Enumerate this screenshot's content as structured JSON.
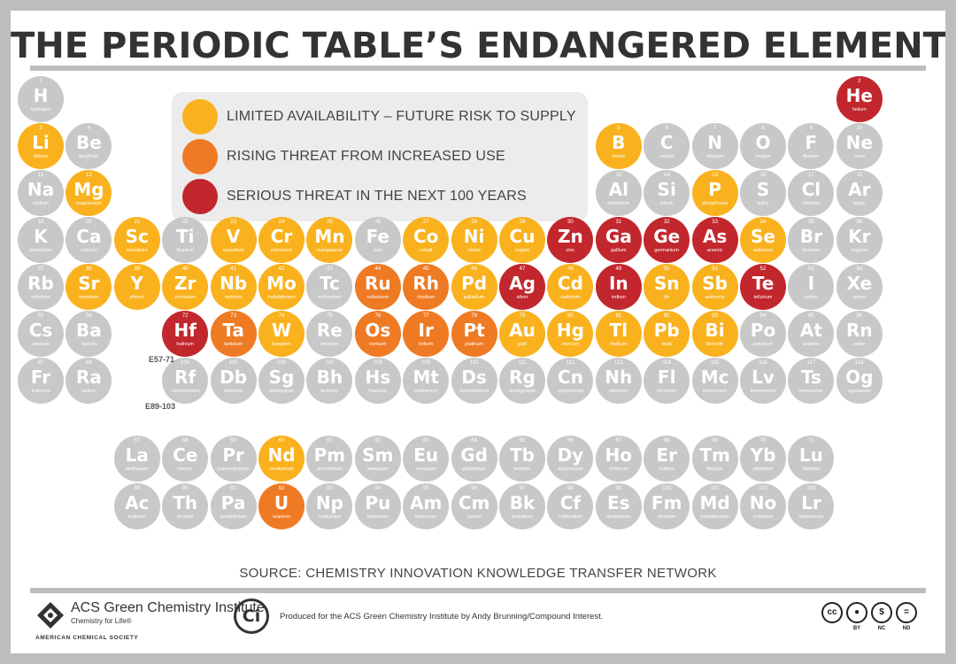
{
  "title": "THE PERIODIC TABLE’S ENDANGERED ELEMENTS",
  "legend": [
    {
      "color": "#f9b21e",
      "label": "LIMITED AVAILABILITY – FUTURE RISK TO SUPPLY"
    },
    {
      "color": "#ef7a24",
      "label": "RISING THREAT FROM INCREASED USE"
    },
    {
      "color": "#c1272d",
      "label": "SERIOUS THREAT IN THE NEXT 100 YEARS"
    }
  ],
  "colors": {
    "none": "#c8c8c8",
    "limited": "#f9b21e",
    "rising": "#ef7a24",
    "serious": "#c1272d"
  },
  "group_labels": {
    "lanthanides": "E57-71",
    "actinides": "E89-103"
  },
  "elements": [
    {
      "n": "1",
      "s": "H",
      "name": "hydrogen",
      "row": 1,
      "col": 1,
      "r": "none"
    },
    {
      "n": "2",
      "s": "He",
      "name": "helium",
      "row": 1,
      "col": 18,
      "r": "serious"
    },
    {
      "n": "3",
      "s": "Li",
      "name": "lithium",
      "row": 2,
      "col": 1,
      "r": "limited"
    },
    {
      "n": "4",
      "s": "Be",
      "name": "beryllium",
      "row": 2,
      "col": 2,
      "r": "none"
    },
    {
      "n": "5",
      "s": "B",
      "name": "boron",
      "row": 2,
      "col": 13,
      "r": "limited"
    },
    {
      "n": "6",
      "s": "C",
      "name": "carbon",
      "row": 2,
      "col": 14,
      "r": "none"
    },
    {
      "n": "7",
      "s": "N",
      "name": "nitrogen",
      "row": 2,
      "col": 15,
      "r": "none"
    },
    {
      "n": "8",
      "s": "O",
      "name": "oxygen",
      "row": 2,
      "col": 16,
      "r": "none"
    },
    {
      "n": "9",
      "s": "F",
      "name": "fluorine",
      "row": 2,
      "col": 17,
      "r": "none"
    },
    {
      "n": "10",
      "s": "Ne",
      "name": "neon",
      "row": 2,
      "col": 18,
      "r": "none"
    },
    {
      "n": "11",
      "s": "Na",
      "name": "sodium",
      "row": 3,
      "col": 1,
      "r": "none"
    },
    {
      "n": "12",
      "s": "Mg",
      "name": "magnesium",
      "row": 3,
      "col": 2,
      "r": "limited"
    },
    {
      "n": "13",
      "s": "Al",
      "name": "aluminium",
      "row": 3,
      "col": 13,
      "r": "none"
    },
    {
      "n": "14",
      "s": "Si",
      "name": "silicon",
      "row": 3,
      "col": 14,
      "r": "none"
    },
    {
      "n": "15",
      "s": "P",
      "name": "phosphorus",
      "row": 3,
      "col": 15,
      "r": "limited"
    },
    {
      "n": "16",
      "s": "S",
      "name": "sulfur",
      "row": 3,
      "col": 16,
      "r": "none"
    },
    {
      "n": "17",
      "s": "Cl",
      "name": "chlorine",
      "row": 3,
      "col": 17,
      "r": "none"
    },
    {
      "n": "18",
      "s": "Ar",
      "name": "argon",
      "row": 3,
      "col": 18,
      "r": "none"
    },
    {
      "n": "19",
      "s": "K",
      "name": "potassium",
      "row": 4,
      "col": 1,
      "r": "none"
    },
    {
      "n": "20",
      "s": "Ca",
      "name": "calcium",
      "row": 4,
      "col": 2,
      "r": "none"
    },
    {
      "n": "21",
      "s": "Sc",
      "name": "scandium",
      "row": 4,
      "col": 3,
      "r": "limited"
    },
    {
      "n": "22",
      "s": "Ti",
      "name": "titanium",
      "row": 4,
      "col": 4,
      "r": "none"
    },
    {
      "n": "23",
      "s": "V",
      "name": "vanadium",
      "row": 4,
      "col": 5,
      "r": "limited"
    },
    {
      "n": "24",
      "s": "Cr",
      "name": "chromium",
      "row": 4,
      "col": 6,
      "r": "limited"
    },
    {
      "n": "25",
      "s": "Mn",
      "name": "manganese",
      "row": 4,
      "col": 7,
      "r": "limited"
    },
    {
      "n": "26",
      "s": "Fe",
      "name": "iron",
      "row": 4,
      "col": 8,
      "r": "none"
    },
    {
      "n": "27",
      "s": "Co",
      "name": "cobalt",
      "row": 4,
      "col": 9,
      "r": "limited"
    },
    {
      "n": "28",
      "s": "Ni",
      "name": "nickel",
      "row": 4,
      "col": 10,
      "r": "limited"
    },
    {
      "n": "29",
      "s": "Cu",
      "name": "copper",
      "row": 4,
      "col": 11,
      "r": "limited"
    },
    {
      "n": "30",
      "s": "Zn",
      "name": "zinc",
      "row": 4,
      "col": 12,
      "r": "serious"
    },
    {
      "n": "31",
      "s": "Ga",
      "name": "gallium",
      "row": 4,
      "col": 13,
      "r": "serious"
    },
    {
      "n": "32",
      "s": "Ge",
      "name": "germanium",
      "row": 4,
      "col": 14,
      "r": "serious"
    },
    {
      "n": "33",
      "s": "As",
      "name": "arsenic",
      "row": 4,
      "col": 15,
      "r": "serious"
    },
    {
      "n": "34",
      "s": "Se",
      "name": "selenium",
      "row": 4,
      "col": 16,
      "r": "limited"
    },
    {
      "n": "35",
      "s": "Br",
      "name": "bromine",
      "row": 4,
      "col": 17,
      "r": "none"
    },
    {
      "n": "36",
      "s": "Kr",
      "name": "krypton",
      "row": 4,
      "col": 18,
      "r": "none"
    },
    {
      "n": "37",
      "s": "Rb",
      "name": "rubidium",
      "row": 5,
      "col": 1,
      "r": "none"
    },
    {
      "n": "38",
      "s": "Sr",
      "name": "strontium",
      "row": 5,
      "col": 2,
      "r": "limited"
    },
    {
      "n": "39",
      "s": "Y",
      "name": "yttrium",
      "row": 5,
      "col": 3,
      "r": "limited"
    },
    {
      "n": "40",
      "s": "Zr",
      "name": "zirconium",
      "row": 5,
      "col": 4,
      "r": "limited"
    },
    {
      "n": "41",
      "s": "Nb",
      "name": "niobium",
      "row": 5,
      "col": 5,
      "r": "limited"
    },
    {
      "n": "42",
      "s": "Mo",
      "name": "molybdenum",
      "row": 5,
      "col": 6,
      "r": "limited"
    },
    {
      "n": "43",
      "s": "Tc",
      "name": "technetium",
      "row": 5,
      "col": 7,
      "r": "none"
    },
    {
      "n": "44",
      "s": "Ru",
      "name": "ruthenium",
      "row": 5,
      "col": 8,
      "r": "rising"
    },
    {
      "n": "45",
      "s": "Rh",
      "name": "rhodium",
      "row": 5,
      "col": 9,
      "r": "rising"
    },
    {
      "n": "46",
      "s": "Pd",
      "name": "palladium",
      "row": 5,
      "col": 10,
      "r": "limited"
    },
    {
      "n": "47",
      "s": "Ag",
      "name": "silver",
      "row": 5,
      "col": 11,
      "r": "serious"
    },
    {
      "n": "48",
      "s": "Cd",
      "name": "cadmium",
      "row": 5,
      "col": 12,
      "r": "limited"
    },
    {
      "n": "49",
      "s": "In",
      "name": "indium",
      "row": 5,
      "col": 13,
      "r": "serious"
    },
    {
      "n": "50",
      "s": "Sn",
      "name": "tin",
      "row": 5,
      "col": 14,
      "r": "limited"
    },
    {
      "n": "51",
      "s": "Sb",
      "name": "antimony",
      "row": 5,
      "col": 15,
      "r": "limited"
    },
    {
      "n": "52",
      "s": "Te",
      "name": "tellurium",
      "row": 5,
      "col": 16,
      "r": "serious"
    },
    {
      "n": "53",
      "s": "I",
      "name": "iodine",
      "row": 5,
      "col": 17,
      "r": "none"
    },
    {
      "n": "54",
      "s": "Xe",
      "name": "xenon",
      "row": 5,
      "col": 18,
      "r": "none"
    },
    {
      "n": "55",
      "s": "Cs",
      "name": "caesium",
      "row": 6,
      "col": 1,
      "r": "none"
    },
    {
      "n": "56",
      "s": "Ba",
      "name": "barium",
      "row": 6,
      "col": 2,
      "r": "none"
    },
    {
      "n": "72",
      "s": "Hf",
      "name": "hafnium",
      "row": 6,
      "col": 4,
      "r": "serious"
    },
    {
      "n": "73",
      "s": "Ta",
      "name": "tantalum",
      "row": 6,
      "col": 5,
      "r": "rising"
    },
    {
      "n": "74",
      "s": "W",
      "name": "tungsten",
      "row": 6,
      "col": 6,
      "r": "limited"
    },
    {
      "n": "75",
      "s": "Re",
      "name": "rhenium",
      "row": 6,
      "col": 7,
      "r": "none"
    },
    {
      "n": "76",
      "s": "Os",
      "name": "osmium",
      "row": 6,
      "col": 8,
      "r": "rising"
    },
    {
      "n": "77",
      "s": "Ir",
      "name": "iridium",
      "row": 6,
      "col": 9,
      "r": "rising"
    },
    {
      "n": "78",
      "s": "Pt",
      "name": "platinum",
      "row": 6,
      "col": 10,
      "r": "rising"
    },
    {
      "n": "79",
      "s": "Au",
      "name": "gold",
      "row": 6,
      "col": 11,
      "r": "limited"
    },
    {
      "n": "80",
      "s": "Hg",
      "name": "mercury",
      "row": 6,
      "col": 12,
      "r": "limited"
    },
    {
      "n": "81",
      "s": "Tl",
      "name": "thallium",
      "row": 6,
      "col": 13,
      "r": "limited"
    },
    {
      "n": "82",
      "s": "Pb",
      "name": "lead",
      "row": 6,
      "col": 14,
      "r": "limited"
    },
    {
      "n": "83",
      "s": "Bi",
      "name": "bismuth",
      "row": 6,
      "col": 15,
      "r": "limited"
    },
    {
      "n": "84",
      "s": "Po",
      "name": "polonium",
      "row": 6,
      "col": 16,
      "r": "none"
    },
    {
      "n": "85",
      "s": "At",
      "name": "astatine",
      "row": 6,
      "col": 17,
      "r": "none"
    },
    {
      "n": "86",
      "s": "Rn",
      "name": "radon",
      "row": 6,
      "col": 18,
      "r": "none"
    },
    {
      "n": "87",
      "s": "Fr",
      "name": "francium",
      "row": 7,
      "col": 1,
      "r": "none"
    },
    {
      "n": "88",
      "s": "Ra",
      "name": "radium",
      "row": 7,
      "col": 2,
      "r": "none"
    },
    {
      "n": "104",
      "s": "Rf",
      "name": "rutherfordium",
      "row": 7,
      "col": 4,
      "r": "none"
    },
    {
      "n": "105",
      "s": "Db",
      "name": "dubnium",
      "row": 7,
      "col": 5,
      "r": "none"
    },
    {
      "n": "106",
      "s": "Sg",
      "name": "seaborgium",
      "row": 7,
      "col": 6,
      "r": "none"
    },
    {
      "n": "107",
      "s": "Bh",
      "name": "bohrium",
      "row": 7,
      "col": 7,
      "r": "none"
    },
    {
      "n": "108",
      "s": "Hs",
      "name": "hassium",
      "row": 7,
      "col": 8,
      "r": "none"
    },
    {
      "n": "109",
      "s": "Mt",
      "name": "meitnerium",
      "row": 7,
      "col": 9,
      "r": "none"
    },
    {
      "n": "110",
      "s": "Ds",
      "name": "darmstadtium",
      "row": 7,
      "col": 10,
      "r": "none"
    },
    {
      "n": "111",
      "s": "Rg",
      "name": "roentgenium",
      "row": 7,
      "col": 11,
      "r": "none"
    },
    {
      "n": "112",
      "s": "Cn",
      "name": "copernicium",
      "row": 7,
      "col": 12,
      "r": "none"
    },
    {
      "n": "113",
      "s": "Nh",
      "name": "nihonium",
      "row": 7,
      "col": 13,
      "r": "none"
    },
    {
      "n": "114",
      "s": "Fl",
      "name": "flerovium",
      "row": 7,
      "col": 14,
      "r": "none"
    },
    {
      "n": "115",
      "s": "Mc",
      "name": "moscovium",
      "row": 7,
      "col": 15,
      "r": "none"
    },
    {
      "n": "116",
      "s": "Lv",
      "name": "livermorium",
      "row": 7,
      "col": 16,
      "r": "none"
    },
    {
      "n": "117",
      "s": "Ts",
      "name": "tennessine",
      "row": 7,
      "col": 17,
      "r": "none"
    },
    {
      "n": "118",
      "s": "Og",
      "name": "oganesson",
      "row": 7,
      "col": 18,
      "r": "none"
    },
    {
      "n": "57",
      "s": "La",
      "name": "lanthanum",
      "row": 9,
      "col": 3,
      "r": "none"
    },
    {
      "n": "58",
      "s": "Ce",
      "name": "cerium",
      "row": 9,
      "col": 4,
      "r": "none"
    },
    {
      "n": "59",
      "s": "Pr",
      "name": "praseodymium",
      "row": 9,
      "col": 5,
      "r": "none"
    },
    {
      "n": "60",
      "s": "Nd",
      "name": "neodymium",
      "row": 9,
      "col": 6,
      "r": "limited"
    },
    {
      "n": "61",
      "s": "Pm",
      "name": "promethium",
      "row": 9,
      "col": 7,
      "r": "none"
    },
    {
      "n": "62",
      "s": "Sm",
      "name": "samarium",
      "row": 9,
      "col": 8,
      "r": "none"
    },
    {
      "n": "63",
      "s": "Eu",
      "name": "europium",
      "row": 9,
      "col": 9,
      "r": "none"
    },
    {
      "n": "64",
      "s": "Gd",
      "name": "gadolinium",
      "row": 9,
      "col": 10,
      "r": "none"
    },
    {
      "n": "65",
      "s": "Tb",
      "name": "terbium",
      "row": 9,
      "col": 11,
      "r": "none"
    },
    {
      "n": "66",
      "s": "Dy",
      "name": "dysprosium",
      "row": 9,
      "col": 12,
      "r": "none"
    },
    {
      "n": "67",
      "s": "Ho",
      "name": "holmium",
      "row": 9,
      "col": 13,
      "r": "none"
    },
    {
      "n": "68",
      "s": "Er",
      "name": "erbium",
      "row": 9,
      "col": 14,
      "r": "none"
    },
    {
      "n": "69",
      "s": "Tm",
      "name": "thulium",
      "row": 9,
      "col": 15,
      "r": "none"
    },
    {
      "n": "70",
      "s": "Yb",
      "name": "ytterbium",
      "row": 9,
      "col": 16,
      "r": "none"
    },
    {
      "n": "71",
      "s": "Lu",
      "name": "lutetium",
      "row": 9,
      "col": 17,
      "r": "none"
    },
    {
      "n": "89",
      "s": "Ac",
      "name": "actinium",
      "row": 10,
      "col": 3,
      "r": "none"
    },
    {
      "n": "90",
      "s": "Th",
      "name": "thorium",
      "row": 10,
      "col": 4,
      "r": "none"
    },
    {
      "n": "91",
      "s": "Pa",
      "name": "protactinium",
      "row": 10,
      "col": 5,
      "r": "none"
    },
    {
      "n": "92",
      "s": "U",
      "name": "uranium",
      "row": 10,
      "col": 6,
      "r": "rising"
    },
    {
      "n": "93",
      "s": "Np",
      "name": "neptunium",
      "row": 10,
      "col": 7,
      "r": "none"
    },
    {
      "n": "94",
      "s": "Pu",
      "name": "plutonium",
      "row": 10,
      "col": 8,
      "r": "none"
    },
    {
      "n": "95",
      "s": "Am",
      "name": "americium",
      "row": 10,
      "col": 9,
      "r": "none"
    },
    {
      "n": "96",
      "s": "Cm",
      "name": "curium",
      "row": 10,
      "col": 10,
      "r": "none"
    },
    {
      "n": "97",
      "s": "Bk",
      "name": "berkelium",
      "row": 10,
      "col": 11,
      "r": "none"
    },
    {
      "n": "98",
      "s": "Cf",
      "name": "californium",
      "row": 10,
      "col": 12,
      "r": "none"
    },
    {
      "n": "99",
      "s": "Es",
      "name": "einsteinium",
      "row": 10,
      "col": 13,
      "r": "none"
    },
    {
      "n": "100",
      "s": "Fm",
      "name": "fermium",
      "row": 10,
      "col": 14,
      "r": "none"
    },
    {
      "n": "101",
      "s": "Md",
      "name": "mendelevium",
      "row": 10,
      "col": 15,
      "r": "none"
    },
    {
      "n": "102",
      "s": "No",
      "name": "nobelium",
      "row": 10,
      "col": 16,
      "r": "none"
    },
    {
      "n": "103",
      "s": "Lr",
      "name": "lawrencium",
      "row": 10,
      "col": 17,
      "r": "none"
    }
  ],
  "source": "SOURCE: CHEMISTRY INNOVATION KNOWLEDGE TRANSFER NETWORK",
  "footer": {
    "acs_name": "ACS Green Chemistry Institute",
    "acs_tagline": "Chemistry for Life®",
    "acs_society": "AMERICAN CHEMICAL SOCIETY",
    "ci_logo": "Ci",
    "credit": "Produced for the ACS Green Chemistry Institute by Andy Brunning/Compound Interest.",
    "license": {
      "cc": "cc",
      "labels": [
        "BY",
        "NC",
        "ND"
      ]
    }
  }
}
